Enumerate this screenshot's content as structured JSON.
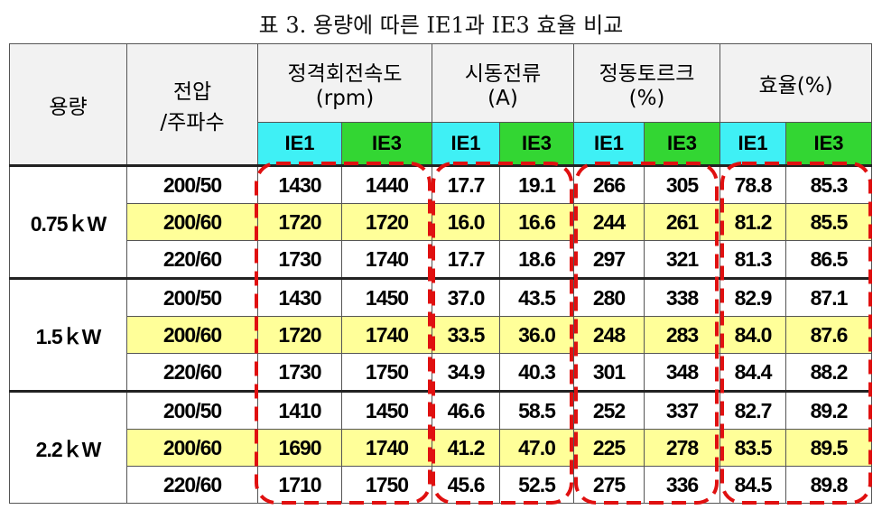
{
  "title": "표 3. 용량에 따른 IE1과 IE3 효율 비교",
  "header": {
    "capacity": "용량",
    "voltage": [
      "전압",
      "/주파수"
    ],
    "groups": [
      {
        "name": "정격회전속도",
        "unit": "(rpm)"
      },
      {
        "name": "시동전류",
        "unit": "(A)"
      },
      {
        "name": "정동토르크",
        "unit": "(%)"
      },
      {
        "name": "효율(%)"
      }
    ],
    "subheaders": [
      "IE1",
      "IE3",
      "IE1",
      "IE3",
      "IE1",
      "IE3",
      "IE1",
      "IE3"
    ]
  },
  "table": {
    "groups": [
      {
        "capacity": "0.75ｋW",
        "rows": [
          {
            "voltage": "200/50",
            "values": [
              "1430",
              "1440",
              "17.7",
              "19.1",
              "266",
              "305",
              "78.8",
              "85.3"
            ]
          },
          {
            "voltage": "200/60",
            "values": [
              "1720",
              "1720",
              "16.0",
              "16.6",
              "244",
              "261",
              "81.2",
              "85.5"
            ]
          },
          {
            "voltage": "220/60",
            "values": [
              "1730",
              "1740",
              "17.7",
              "18.6",
              "297",
              "321",
              "81.3",
              "86.5"
            ]
          }
        ]
      },
      {
        "capacity": "1.5ｋW",
        "rows": [
          {
            "voltage": "200/50",
            "values": [
              "1430",
              "1450",
              "37.0",
              "43.5",
              "280",
              "338",
              "82.9",
              "87.1"
            ]
          },
          {
            "voltage": "200/60",
            "values": [
              "1720",
              "1740",
              "33.5",
              "36.0",
              "248",
              "283",
              "84.0",
              "87.6"
            ]
          },
          {
            "voltage": "220/60",
            "values": [
              "1730",
              "1750",
              "34.9",
              "40.3",
              "301",
              "348",
              "84.4",
              "88.2"
            ]
          }
        ]
      },
      {
        "capacity": "2.2ｋW",
        "rows": [
          {
            "voltage": "200/50",
            "values": [
              "1410",
              "1450",
              "46.6",
              "58.5",
              "252",
              "337",
              "82.7",
              "89.2"
            ]
          },
          {
            "voltage": "200/60",
            "values": [
              "1690",
              "1740",
              "41.2",
              "47.0",
              "225",
              "278",
              "83.5",
              "89.5"
            ]
          },
          {
            "voltage": "220/60",
            "values": [
              "1710",
              "1750",
              "45.6",
              "52.5",
              "275",
              "336",
              "84.5",
              "89.8"
            ]
          }
        ]
      }
    ]
  }
}
